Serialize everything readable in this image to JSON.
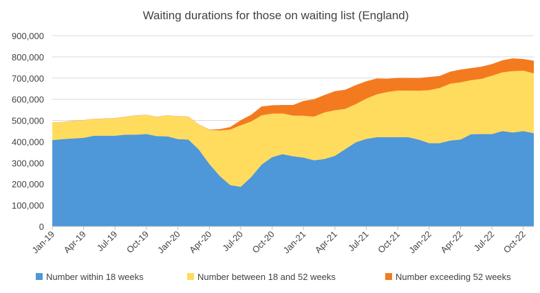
{
  "chart_data": {
    "type": "area",
    "stacked": true,
    "title": "Waiting durations for those on waiting list (England)",
    "xlabel": "",
    "ylabel": "",
    "ylim": [
      0,
      900000
    ],
    "yticks": [
      0,
      100000,
      200000,
      300000,
      400000,
      500000,
      600000,
      700000,
      800000,
      900000
    ],
    "ytick_labels": [
      "0",
      "100,000",
      "200,000",
      "300,000",
      "400,000",
      "500,000",
      "600,000",
      "700,000",
      "800,000",
      "900,000"
    ],
    "grid": true,
    "legend_position": "bottom",
    "x": [
      "Jan-19",
      "Feb-19",
      "Mar-19",
      "Apr-19",
      "May-19",
      "Jun-19",
      "Jul-19",
      "Aug-19",
      "Sep-19",
      "Oct-19",
      "Nov-19",
      "Dec-19",
      "Jan-20",
      "Feb-20",
      "Mar-20",
      "Apr-20",
      "May-20",
      "Jun-20",
      "Jul-20",
      "Aug-20",
      "Sep-20",
      "Oct-20",
      "Nov-20",
      "Dec-20",
      "Jan-21",
      "Feb-21",
      "Mar-21",
      "Apr-21",
      "May-21",
      "Jun-21",
      "Jul-21",
      "Aug-21",
      "Sep-21",
      "Oct-21",
      "Nov-21",
      "Dec-21",
      "Jan-22",
      "Feb-22",
      "Mar-22",
      "Apr-22",
      "May-22",
      "Jun-22",
      "Jul-22",
      "Aug-22",
      "Sep-22",
      "Oct-22",
      "Nov-22"
    ],
    "xtick_labels": [
      "Jan-19",
      "Apr-19",
      "Jul-19",
      "Oct-19",
      "Jan-20",
      "Apr-20",
      "Jul-20",
      "Oct-20",
      "Jan-21",
      "Apr-21",
      "Jul-21",
      "Oct-21",
      "Jan-22",
      "Apr-22",
      "Jul-22",
      "Oct-22"
    ],
    "xtick_indices": [
      0,
      3,
      6,
      9,
      12,
      15,
      18,
      21,
      24,
      27,
      30,
      33,
      36,
      39,
      42,
      45
    ],
    "series": [
      {
        "name": "Number within 18 weeks",
        "color": "#4e97d8",
        "values": [
          407000,
          412000,
          415000,
          418000,
          428000,
          428000,
          428000,
          433000,
          433000,
          436000,
          426000,
          425000,
          412000,
          410000,
          363000,
          295000,
          238000,
          195000,
          187000,
          233000,
          292000,
          327000,
          341000,
          331000,
          325000,
          312000,
          318000,
          333000,
          365000,
          397000,
          413000,
          421000,
          421000,
          421000,
          421000,
          410000,
          393000,
          393000,
          405000,
          410000,
          435000,
          436000,
          436000,
          450000,
          443000,
          450000,
          440000
        ]
      },
      {
        "name": "Number between 18 and 52 weeks",
        "color": "#ffdc5e",
        "values": [
          83000,
          80000,
          82000,
          83000,
          79000,
          80000,
          82000,
          84000,
          90000,
          90000,
          90000,
          98000,
          107000,
          108000,
          117000,
          160000,
          215000,
          262000,
          290000,
          262000,
          232000,
          205000,
          192000,
          192000,
          197000,
          206000,
          220000,
          215000,
          190000,
          180000,
          190000,
          202000,
          213000,
          220000,
          220000,
          230000,
          250000,
          260000,
          268000,
          270000,
          255000,
          260000,
          275000,
          277000,
          290000,
          285000,
          282000
        ]
      },
      {
        "name": "Number exceeding 52 weeks",
        "color": "#f47a20",
        "values": [
          1000,
          1000,
          1000,
          1000,
          1000,
          1000,
          1000,
          1000,
          1000,
          1000,
          1000,
          1000,
          1000,
          1000,
          1000,
          2000,
          6000,
          12000,
          24000,
          32000,
          42000,
          40000,
          40000,
          50000,
          70000,
          82000,
          82000,
          90000,
          90000,
          90000,
          82000,
          75000,
          63000,
          60000,
          60000,
          60000,
          62000,
          57000,
          57000,
          60000,
          57000,
          58000,
          55000,
          57000,
          60000,
          55000,
          60000
        ]
      }
    ]
  }
}
